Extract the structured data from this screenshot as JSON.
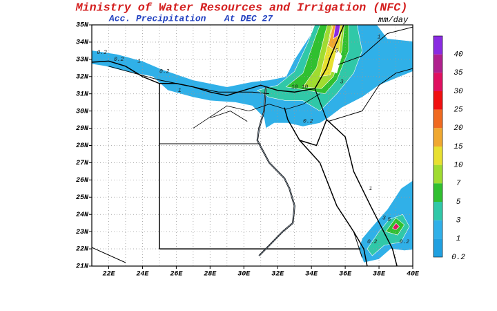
{
  "header": {
    "title": "Ministry of Water Resources and Irrigation (NFC)",
    "subtitle": "Acc. Precipitation",
    "date": "At DEC 27",
    "units": "mm/day"
  },
  "map": {
    "lon_labels": [
      "22E",
      "24E",
      "26E",
      "28E",
      "30E",
      "32E",
      "34E",
      "36E",
      "38E",
      "40E"
    ],
    "lat_labels": [
      "21N",
      "22N",
      "23N",
      "24N",
      "25N",
      "26N",
      "27N",
      "28N",
      "29N",
      "30N",
      "31N",
      "32N",
      "33N",
      "34N",
      "35N"
    ],
    "contour_labels": [
      "0.2",
      "0.2",
      "1",
      "0.2",
      "1",
      "10",
      "10",
      "3",
      "5",
      "1",
      "0.2",
      "1",
      "3",
      "5",
      "0.2",
      "0.2"
    ]
  },
  "colorbar": {
    "levels": [
      40,
      35,
      30,
      25,
      20,
      15,
      10,
      7,
      5,
      3,
      1,
      0.2
    ],
    "colors": [
      "#8a2be2",
      "#b0208e",
      "#e01060",
      "#f01010",
      "#f06a20",
      "#f0a830",
      "#e8e030",
      "#a0dc30",
      "#30c030",
      "#30c8a8",
      "#30b0e8",
      "#20a0e0"
    ]
  }
}
